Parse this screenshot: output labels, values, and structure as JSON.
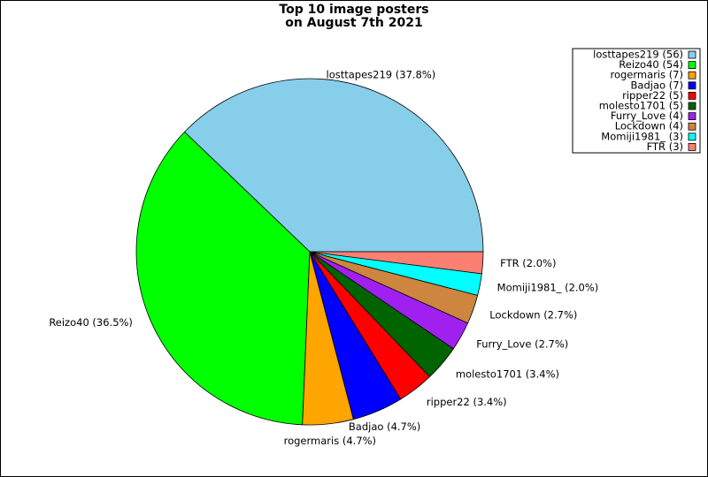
{
  "chart_data": {
    "type": "pie",
    "title": [
      "Top 10 image posters",
      "on August 7th 2021"
    ],
    "values": [
      56,
      54,
      7,
      7,
      5,
      5,
      4,
      4,
      3,
      3
    ],
    "legend_labels": [
      "losttapes219 (56)",
      "Reizo40 (54)",
      "rogermaris (7)",
      "Badjao (7)",
      "ripper22 (5)",
      "molesto1701 (5)",
      "Furry_Love (4)",
      "Lockdown (4)",
      "Momiji1981_ (3)",
      "FTR (3)"
    ],
    "value_labels": [
      "losttapes219 (37.8%)",
      "Reizo40 (36.5%)",
      "rogermaris (4.7%)",
      "Badjao (4.7%)",
      "ripper22 (3.4%)",
      "molesto1701 (3.4%)",
      "Furry_Love (2.7%)",
      "Lockdown (2.7%)",
      "Momiji1981_ (2.0%)",
      "FTR (2.0%)"
    ],
    "colors": [
      "#87ceeb",
      "#00ff00",
      "#ffa500",
      "#0000ff",
      "#ff0000",
      "#006400",
      "#a020f0",
      "#cd853f",
      "#00ffff",
      "#fa8072"
    ],
    "legend_position": "upper right"
  }
}
